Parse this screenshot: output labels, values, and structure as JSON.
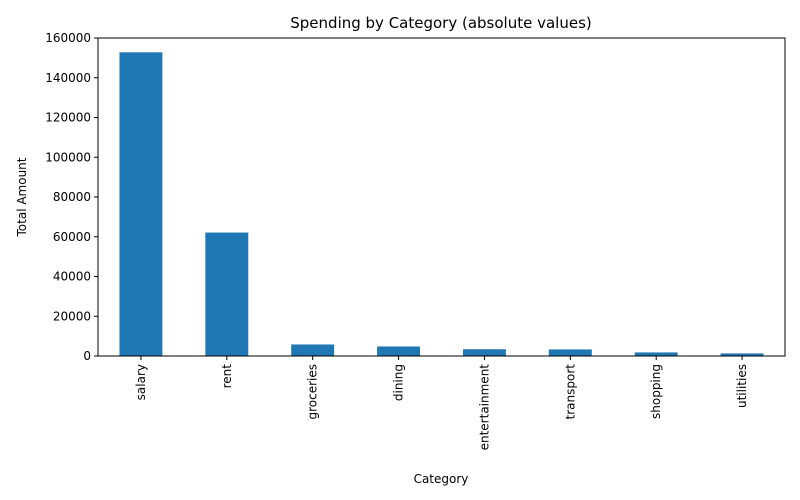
{
  "chart_data": {
    "type": "bar",
    "title": "Spending by Category (absolute values)",
    "xlabel": "Category",
    "ylabel": "Total Amount",
    "categories": [
      "salary",
      "rent",
      "groceries",
      "dining",
      "entertainment",
      "transport",
      "shopping",
      "utilities"
    ],
    "values": [
      152800,
      62100,
      5800,
      4800,
      3400,
      3300,
      1800,
      1300
    ],
    "ylim": [
      0,
      160000
    ],
    "yticks": [
      "0",
      "20000",
      "40000",
      "60000",
      "80000",
      "100000",
      "120000",
      "140000",
      "160000"
    ],
    "grid": false,
    "legend": "none",
    "bar_color": "#1f77b4"
  }
}
